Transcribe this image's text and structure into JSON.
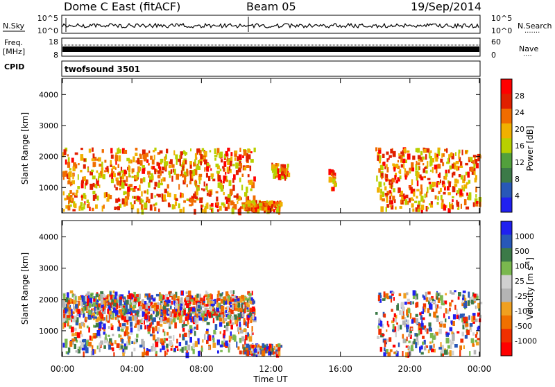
{
  "header": {
    "station": "Dome C East (fitACF)",
    "beam": "Beam 05",
    "date": "19/Sep/2014"
  },
  "strip1": {
    "left_label": "N.Sky",
    "left_ticks": [
      "10^5",
      "10^0"
    ],
    "right_ticks": [
      "10^5",
      "10^0"
    ],
    "right_label": "N.Search",
    "right_dots": "·······"
  },
  "strip2": {
    "left_label_1": "Freq.",
    "left_label_2": "[MHz]",
    "left_ticks": [
      "18",
      "8"
    ],
    "right_ticks": [
      "60",
      "0"
    ],
    "right_label": "Nave",
    "right_dots": "····"
  },
  "strip3": {
    "left_label": "CPID",
    "program": "twofsound 3501"
  },
  "colors": {
    "power_scale": [
      "#2020f0",
      "#2858b8",
      "#3c7a48",
      "#52a03c",
      "#b8d000",
      "#f0b000",
      "#f06c00",
      "#e02000",
      "#ff0000"
    ],
    "velocity_scale": [
      "#ff0000",
      "#f03000",
      "#f07000",
      "#f0a020",
      "#b4b4b4",
      "#d0d0d0",
      "#7ab84e",
      "#3c7a48",
      "#2858b8",
      "#2020f0"
    ]
  },
  "chart_data": [
    {
      "type": "heatmap",
      "title": "",
      "xlabel": "",
      "ylabel": "Slant Range [km]",
      "x_ticks": [
        "00:00",
        "04:00",
        "08:00",
        "12:00",
        "16:00",
        "20:00",
        "00:00"
      ],
      "y_ticks": [
        "1000",
        "2000",
        "3000",
        "4000"
      ],
      "ylim": [
        200,
        4500
      ],
      "colorbar_label": "Power [dB]",
      "colorbar_ticks": [
        "28",
        "24",
        "20",
        "16",
        "12",
        "8",
        "4"
      ],
      "clim": [
        0,
        32
      ],
      "regions": [
        {
          "t": [
            0.0,
            11.0
          ],
          "r": [
            300,
            2300
          ],
          "level": 20
        },
        {
          "t": [
            10.3,
            12.5
          ],
          "r": [
            300,
            600
          ],
          "level": 24
        },
        {
          "t": [
            12.0,
            13.0
          ],
          "r": [
            1400,
            1800
          ],
          "level": 12
        },
        {
          "t": [
            15.3,
            15.7
          ],
          "r": [
            1000,
            1600
          ],
          "level": 24
        },
        {
          "t": [
            18.0,
            24.0
          ],
          "r": [
            300,
            2300
          ],
          "level": 20
        }
      ]
    },
    {
      "type": "heatmap",
      "title": "",
      "xlabel": "Time UT",
      "ylabel": "Slant Range [km]",
      "x_ticks": [
        "00:00",
        "04:00",
        "08:00",
        "12:00",
        "16:00",
        "20:00",
        "00:00"
      ],
      "y_ticks": [
        "1000",
        "2000",
        "3000",
        "4000"
      ],
      "ylim": [
        200,
        4500
      ],
      "colorbar_label": "Velocity [m s-1]",
      "colorbar_label_main": "Velocity [m s",
      "colorbar_label_sup": "-1",
      "colorbar_label_end": "]",
      "colorbar_ticks": [
        "1000",
        "500",
        "100",
        "25",
        "-25",
        "-100",
        "-500",
        "-1000"
      ],
      "regions": [
        {
          "t": [
            0.0,
            11.0
          ],
          "r": [
            300,
            2300
          ],
          "level": -100
        },
        {
          "t": [
            0.0,
            11.0
          ],
          "r": [
            1400,
            2200
          ],
          "level": 0
        },
        {
          "t": [
            10.3,
            12.5
          ],
          "r": [
            300,
            600
          ],
          "level": -100
        },
        {
          "t": [
            18.0,
            24.0
          ],
          "r": [
            300,
            2300
          ],
          "level": -100
        }
      ]
    }
  ]
}
